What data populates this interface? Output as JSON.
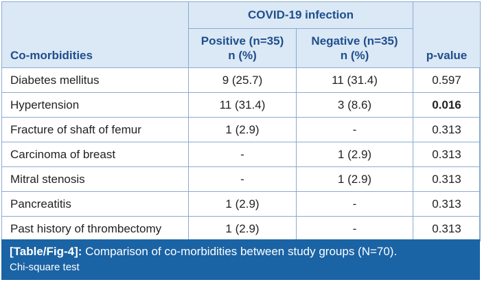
{
  "table": {
    "group_header": "COVID-19 infection",
    "col_label": "Co-morbidities",
    "col_positive_line1": "Positive (n=35)",
    "col_positive_line2": "n (%)",
    "col_negative_line1": "Negative (n=35)",
    "col_negative_line2": "n (%)",
    "col_pvalue": "p-value",
    "rows": [
      {
        "name": "Diabetes mellitus",
        "positive": "9 (25.7)",
        "negative": "11 (31.4)",
        "p": "0.597",
        "significant": false
      },
      {
        "name": "Hypertension",
        "positive": "11 (31.4)",
        "negative": "3 (8.6)",
        "p": "0.016",
        "significant": true
      },
      {
        "name": "Fracture of shaft of femur",
        "positive": "1 (2.9)",
        "negative": "-",
        "p": "0.313",
        "significant": false
      },
      {
        "name": "Carcinoma of breast",
        "positive": "-",
        "negative": "1 (2.9)",
        "p": "0.313",
        "significant": false
      },
      {
        "name": "Mitral stenosis",
        "positive": "-",
        "negative": "1 (2.9)",
        "p": "0.313",
        "significant": false
      },
      {
        "name": "Pancreatitis",
        "positive": "1 (2.9)",
        "negative": "-",
        "p": "0.313",
        "significant": false
      },
      {
        "name": "Past history of thrombectomy",
        "positive": "1 (2.9)",
        "negative": "-",
        "p": "0.313",
        "significant": false
      }
    ]
  },
  "caption": {
    "label": "[Table/Fig-4]:",
    "text": " Comparison of co-morbidities between study groups (N=70).",
    "note": "Chi-square test"
  },
  "colors": {
    "header_bg": "#dbe8f5",
    "header_text": "#1e4e8c",
    "border": "#8aabcf",
    "caption_bg": "#1a63a5"
  }
}
